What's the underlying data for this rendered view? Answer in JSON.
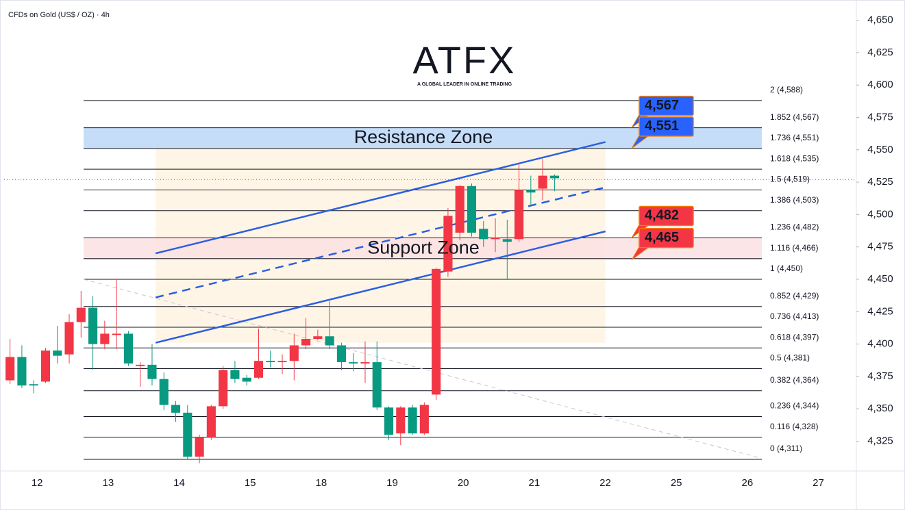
{
  "chart_data": {
    "type": "candlestick",
    "title": "CFDs on Gold (US$ / OZ) · 4h",
    "logo": "ATFX",
    "logo_tagline": "A GLOBAL LEADER IN ONLINE TRADING",
    "categories": [
      null,
      null,
      "12",
      null,
      null,
      null,
      null,
      null,
      "13",
      null,
      null,
      null,
      null,
      null,
      "14",
      null,
      null,
      null,
      null,
      null,
      "15",
      null,
      null,
      null,
      null,
      null,
      "18",
      null,
      null,
      null,
      null,
      null,
      "19",
      null,
      null,
      null,
      null,
      null,
      "20",
      null,
      null,
      null,
      null,
      null,
      "21",
      null,
      null,
      null,
      null,
      null,
      "22",
      null,
      null,
      null,
      null,
      null,
      "25",
      null,
      null,
      null,
      null,
      null,
      "26",
      null,
      null,
      null,
      null,
      null,
      "27",
      null,
      null,
      null
    ],
    "open": [
      4372,
      4390,
      4369,
      4371,
      4395,
      4392,
      4417,
      4428,
      4400,
      4407,
      4408,
      4383,
      4384,
      4373,
      4353,
      4347,
      4313,
      4328,
      4352,
      4380,
      4374,
      4374,
      4387,
      4386,
      4387,
      4399,
      4404,
      4406,
      4399,
      4386,
      4385,
      4386,
      4351,
      4331,
      4351,
      4331,
      4361,
      4456,
      4486,
      4522,
      4489,
      4481,
      4481,
      4481,
      4519,
      4520,
      4530,
      null,
      null,
      null,
      null,
      null,
      null,
      null,
      null,
      null,
      null,
      null,
      null,
      null,
      null,
      null,
      null,
      null,
      null,
      null,
      null,
      null,
      null,
      null,
      null,
      null
    ],
    "high": [
      4404,
      4399,
      4372,
      4397,
      4414,
      4423,
      4441,
      4437,
      4418,
      4450,
      4410,
      4386,
      4400,
      4378,
      4356,
      4353,
      4330,
      4353,
      4383,
      4387,
      4376,
      4412,
      4395,
      4392,
      4408,
      4420,
      4411,
      4433,
      4401,
      4393,
      4402,
      4402,
      4352,
      4352,
      4353,
      4355,
      4459,
      4505,
      4523,
      4524,
      4495,
      4497,
      4496,
      4540,
      4530,
      4543,
      4531,
      null,
      null,
      null,
      null,
      null,
      null,
      null,
      null,
      null,
      null,
      null,
      null,
      null,
      null,
      null,
      null,
      null,
      null,
      null,
      null,
      null,
      null,
      null,
      null,
      null
    ],
    "low": [
      4369,
      4366,
      4362,
      4370,
      4385,
      4385,
      4405,
      4380,
      4396,
      4396,
      4383,
      4367,
      4368,
      4349,
      4340,
      4311,
      4308,
      4326,
      4350,
      4370,
      4368,
      4373,
      4382,
      4377,
      4372,
      4396,
      4403,
      4396,
      4380,
      4379,
      4370,
      4349,
      4326,
      4322,
      4330,
      4330,
      4357,
      4452,
      4480,
      4483,
      4475,
      4471,
      4450,
      4479,
      4507,
      4511,
      4518,
      null,
      null,
      null,
      null,
      null,
      null,
      null,
      null,
      null,
      null,
      null,
      null,
      null,
      null,
      null,
      null,
      null,
      null,
      null,
      null,
      null,
      null,
      null,
      null,
      null
    ],
    "close": [
      4390,
      4368,
      4368,
      4395,
      4391,
      4417,
      4428,
      4400,
      4408,
      4408,
      4385,
      4384,
      4373,
      4353,
      4347,
      4313,
      4328,
      4352,
      4380,
      4373,
      4371,
      4387,
      4386,
      4387,
      4399,
      4404,
      4406,
      4399,
      4386,
      4385,
      4386,
      4351,
      4330,
      4351,
      4331,
      4353,
      4458,
      4499,
      4522,
      4486,
      4481,
      4482,
      4479,
      4519,
      4517,
      4530,
      4528,
      null,
      null,
      null,
      null,
      null,
      null,
      null,
      null,
      null,
      null,
      null,
      null,
      null,
      null,
      null,
      null,
      null,
      null,
      null,
      null,
      null,
      null,
      null,
      null,
      null
    ],
    "up_color": "#f23645",
    "down_color": "#089981",
    "ylim": [
      4302,
      4663
    ],
    "yticks": [
      {
        "value": 4325,
        "label": "4,325"
      },
      {
        "value": 4350,
        "label": "4,350"
      },
      {
        "value": 4375,
        "label": "4,375"
      },
      {
        "value": 4400,
        "label": "4,400"
      },
      {
        "value": 4425,
        "label": "4,425"
      },
      {
        "value": 4450,
        "label": "4,450"
      },
      {
        "value": 4475,
        "label": "4,475"
      },
      {
        "value": 4500,
        "label": "4,500"
      },
      {
        "value": 4525,
        "label": "4,525"
      },
      {
        "value": 4550,
        "label": "4,550"
      },
      {
        "value": 4575,
        "label": "4,575"
      },
      {
        "value": 4600,
        "label": "4,600"
      },
      {
        "value": 4625,
        "label": "4,625"
      },
      {
        "value": 4650,
        "label": "4,650"
      }
    ],
    "last_price": 4527,
    "fib_levels": [
      {
        "value": 4588,
        "label": "2 (4,588)"
      },
      {
        "value": 4567,
        "label": "1.852 (4,567)"
      },
      {
        "value": 4551,
        "label": "1.736 (4,551)"
      },
      {
        "value": 4535,
        "label": "1.618 (4,535)"
      },
      {
        "value": 4519,
        "label": "1.5 (4,519)"
      },
      {
        "value": 4503,
        "label": "1.386 (4,503)"
      },
      {
        "value": 4482,
        "label": "1.236 (4,482)"
      },
      {
        "value": 4466,
        "label": "1.116 (4,466)"
      },
      {
        "value": 4450,
        "label": "1 (4,450)"
      },
      {
        "value": 4429,
        "label": "0.852 (4,429)"
      },
      {
        "value": 4413,
        "label": "0.736 (4,413)"
      },
      {
        "value": 4397,
        "label": "0.618 (4,397)"
      },
      {
        "value": 4381,
        "label": "0.5 (4,381)"
      },
      {
        "value": 4364,
        "label": "0.382 (4,364)"
      },
      {
        "value": 4344,
        "label": "0.236 (4,344)"
      },
      {
        "value": 4328,
        "label": "0.116 (4,328)"
      },
      {
        "value": 4311,
        "label": "0 (4,311)"
      }
    ],
    "zones": [
      {
        "label": "Resistance Zone",
        "from": 4551,
        "to": 4567,
        "color": "#bbd7f7",
        "text_color": "#2962ff"
      },
      {
        "label": "Support Zone",
        "from": 4465,
        "to": 4482,
        "color": "#fbe0e2",
        "text_color": "#f05a6a"
      }
    ],
    "price_tags": [
      {
        "value": 4567,
        "label": "4,567",
        "color": "#2962ff"
      },
      {
        "value": 4551,
        "label": "4,551",
        "color": "#2962ff"
      },
      {
        "value": 4482,
        "label": "4,482",
        "color": "#f23645"
      },
      {
        "value": 4465,
        "label": "4,465",
        "color": "#f23645"
      }
    ],
    "channel": {
      "x": [
        12.3,
        50.3
      ],
      "upper": [
        4470,
        4556
      ],
      "lower": [
        4401,
        4487
      ],
      "middle": [
        4436,
        4521
      ],
      "color": "#2b5fe0"
    },
    "trendline": {
      "x": [
        6.2,
        63.4
      ],
      "y": [
        4450,
        4312
      ]
    }
  }
}
